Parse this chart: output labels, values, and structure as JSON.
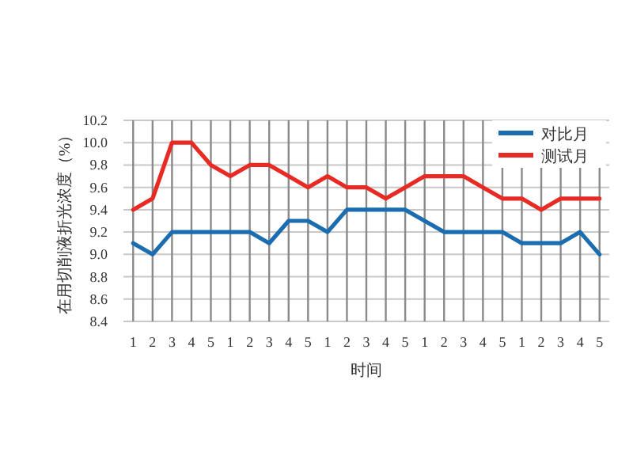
{
  "chart_data": {
    "type": "line",
    "xlabel": "时间",
    "ylabel": "在用切削液折光浓度（%）",
    "categories": [
      "1",
      "2",
      "3",
      "4",
      "5",
      "1",
      "2",
      "3",
      "4",
      "5",
      "1",
      "2",
      "3",
      "4",
      "5",
      "1",
      "2",
      "3",
      "4",
      "5",
      "1",
      "2",
      "3",
      "4",
      "5"
    ],
    "series": [
      {
        "name": "对比月",
        "color": "#1a6db0",
        "values": [
          9.1,
          9.0,
          9.2,
          9.2,
          9.2,
          9.2,
          9.2,
          9.1,
          9.3,
          9.3,
          9.2,
          9.4,
          9.4,
          9.4,
          9.4,
          9.3,
          9.2,
          9.2,
          9.2,
          9.2,
          9.1,
          9.1,
          9.1,
          9.2,
          9.0
        ]
      },
      {
        "name": "测试月",
        "color": "#e82a24",
        "values": [
          9.4,
          9.5,
          10.0,
          10.0,
          9.8,
          9.7,
          9.8,
          9.8,
          9.7,
          9.6,
          9.7,
          9.6,
          9.6,
          9.5,
          9.6,
          9.7,
          9.7,
          9.7,
          9.6,
          9.5,
          9.5,
          9.4,
          9.5,
          9.5,
          9.5
        ]
      }
    ],
    "ylim": [
      8.4,
      10.2
    ],
    "yticks": [
      8.4,
      8.6,
      8.8,
      {
        "value": 9.0,
        "label": "9.0"
      },
      9.2,
      9.4,
      9.6,
      9.8,
      {
        "value": 10.0,
        "label": "10.0"
      },
      10.2
    ],
    "grid": true,
    "legend": "top right",
    "marker": "none",
    "line_style": "solid"
  }
}
